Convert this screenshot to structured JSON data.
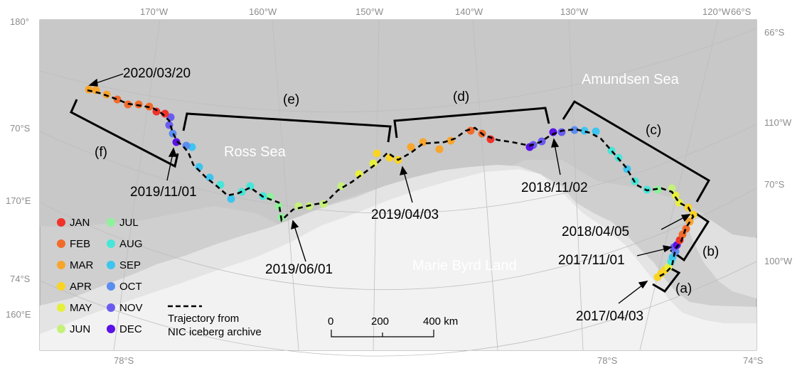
{
  "map": {
    "region_labels": {
      "amundsen_sea": "Amundsen Sea",
      "ross_sea": "Ross Sea",
      "marie_byrd_land": "Marie Byrd Land"
    },
    "grid_labels": {
      "top": [
        "170°W",
        "160°W",
        "150°W",
        "140°W",
        "130°W",
        "120°W",
        "66°S"
      ],
      "top_left": "180°",
      "left": [
        "70°S",
        "170°E",
        "74°S",
        "160°E"
      ],
      "right": [
        "66°S",
        "110°W",
        "70°S",
        "100°W"
      ],
      "bottom": [
        "78°S",
        "78°S",
        "74°S"
      ]
    },
    "date_labels": [
      "2020/03/20",
      "2019/11/01",
      "2019/06/01",
      "2019/04/03",
      "2018/11/02",
      "2018/04/05",
      "2017/11/01",
      "2017/04/03"
    ],
    "segment_labels": [
      "(a)",
      "(b)",
      "(c)",
      "(d)",
      "(e)",
      "(f)"
    ],
    "legend": {
      "months": [
        {
          "label": "JAN",
          "color": "#f03228"
        },
        {
          "label": "FEB",
          "color": "#f26b2a"
        },
        {
          "label": "MAR",
          "color": "#f8a52c"
        },
        {
          "label": "APR",
          "color": "#f9d423"
        },
        {
          "label": "MAY",
          "color": "#e6f03c"
        },
        {
          "label": "JUN",
          "color": "#c5f07a"
        },
        {
          "label": "JUL",
          "color": "#8ef29a"
        },
        {
          "label": "AUG",
          "color": "#47e6d8"
        },
        {
          "label": "SEP",
          "color": "#3ec5ef"
        },
        {
          "label": "OCT",
          "color": "#5b8df0"
        },
        {
          "label": "NOV",
          "color": "#6a5cf0"
        },
        {
          "label": "DEC",
          "color": "#5a12e6"
        }
      ],
      "trajectory_label_line1": "Trajectory from",
      "trajectory_label_line2": "NIC iceberg archive"
    },
    "scale_bar": {
      "ticks": [
        "0",
        "200",
        "400 km"
      ]
    }
  }
}
